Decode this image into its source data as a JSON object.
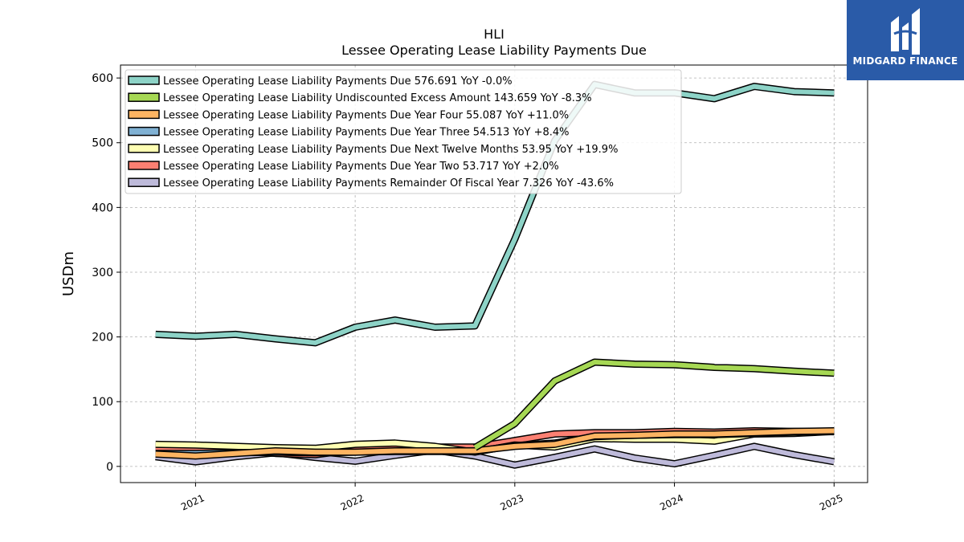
{
  "logo": {
    "brand": "MIDGARD FINANCE"
  },
  "chart_data": {
    "type": "line",
    "title": "HLI",
    "subtitle": "Lessee Operating Lease Liability Payments Due",
    "ylabel": "USDm",
    "ylim": [
      -25,
      620
    ],
    "yticks": [
      0,
      100,
      200,
      300,
      400,
      500,
      600
    ],
    "xlim": [
      2020.53,
      2025.21
    ],
    "xticks": [
      {
        "value": 2021,
        "label": "2021"
      },
      {
        "value": 2022,
        "label": "2022"
      },
      {
        "value": 2023,
        "label": "2023"
      },
      {
        "value": 2024,
        "label": "2024"
      },
      {
        "value": 2025,
        "label": "2025"
      }
    ],
    "grid": true,
    "legend_position": "top-left",
    "x": [
      2020.75,
      2021.0,
      2021.25,
      2021.5,
      2021.75,
      2022.0,
      2022.25,
      2022.5,
      2022.75,
      2023.0,
      2023.25,
      2023.5,
      2023.75,
      2024.0,
      2024.25,
      2024.5,
      2024.75,
      2025.0
    ],
    "series": [
      {
        "name": "Lessee Operating Lease Liability Payments Due",
        "legend": "Lessee Operating Lease Liability Payments Due  576.691 YoY -0.0%",
        "color": "#8dd3c7",
        "values": [
          204,
          201,
          204,
          197,
          191,
          215,
          226,
          215,
          217,
          351,
          503,
          590,
          577,
          577,
          568,
          587,
          579,
          577
        ]
      },
      {
        "name": "Lessee Operating Lease Liability Undiscounted Excess Amount",
        "legend": "Lessee Operating Lease Liability Undiscounted Excess Amount  143.659 YoY -8.3%",
        "color": "#a6d854",
        "values": [
          null,
          null,
          null,
          null,
          null,
          null,
          null,
          null,
          29,
          66,
          132,
          161,
          158,
          157,
          153,
          151,
          147,
          144
        ]
      },
      {
        "name": "Lessee Operating Lease Liability Payments Due Year Four",
        "legend": "Lessee Operating Lease Liability Payments Due Year Four  55.087 YoY +11.0%",
        "color": "#fdb462",
        "values": [
          19,
          16,
          20,
          24,
          22,
          22,
          24,
          24,
          24,
          31,
          34,
          47,
          48,
          50,
          50,
          52,
          54,
          55
        ]
      },
      {
        "name": "Lessee Operating Lease Liability Payments Due Year Three",
        "legend": "Lessee Operating Lease Liability Payments Due Year Three  54.513 YoY +8.4%",
        "color": "#80b1d3",
        "values": [
          20,
          20,
          21,
          22,
          21,
          22,
          23,
          23,
          23,
          32,
          36,
          46,
          48,
          49,
          49,
          51,
          53,
          54.5
        ]
      },
      {
        "name": "Lessee Operating Lease Liability Payments Due Next Twelve Months",
        "legend": "Lessee Operating Lease Liability Payments Due Next Twelve Months  53.95 YoY +19.9%",
        "color": "#ffffb3",
        "values": [
          34,
          33,
          31,
          29,
          28,
          34,
          36,
          31,
          22,
          33,
          30,
          43,
          42,
          42,
          39,
          50,
          51,
          54
        ]
      },
      {
        "name": "Lessee Operating Lease Liability Payments Due Year Two",
        "legend": "Lessee Operating Lease Liability Payments Due Year Two  53.717 YoY +2.0%",
        "color": "#fb8072",
        "values": [
          28,
          28,
          25,
          20,
          18,
          26,
          29,
          30,
          30,
          40,
          50,
          52,
          52,
          54,
          53,
          55,
          54,
          53.7
        ]
      },
      {
        "name": "Lessee Operating Lease Liability Payments Remainder Of Fiscal Year",
        "legend": "Lessee Operating Lease Liability Payments Remainder Of Fiscal Year  7.326 YoY -43.6%",
        "color": "#bebada",
        "values": [
          15,
          7,
          15,
          21,
          14,
          8,
          17,
          25,
          16,
          2,
          14,
          27,
          13,
          4,
          17,
          31,
          18,
          7.3
        ]
      }
    ]
  }
}
